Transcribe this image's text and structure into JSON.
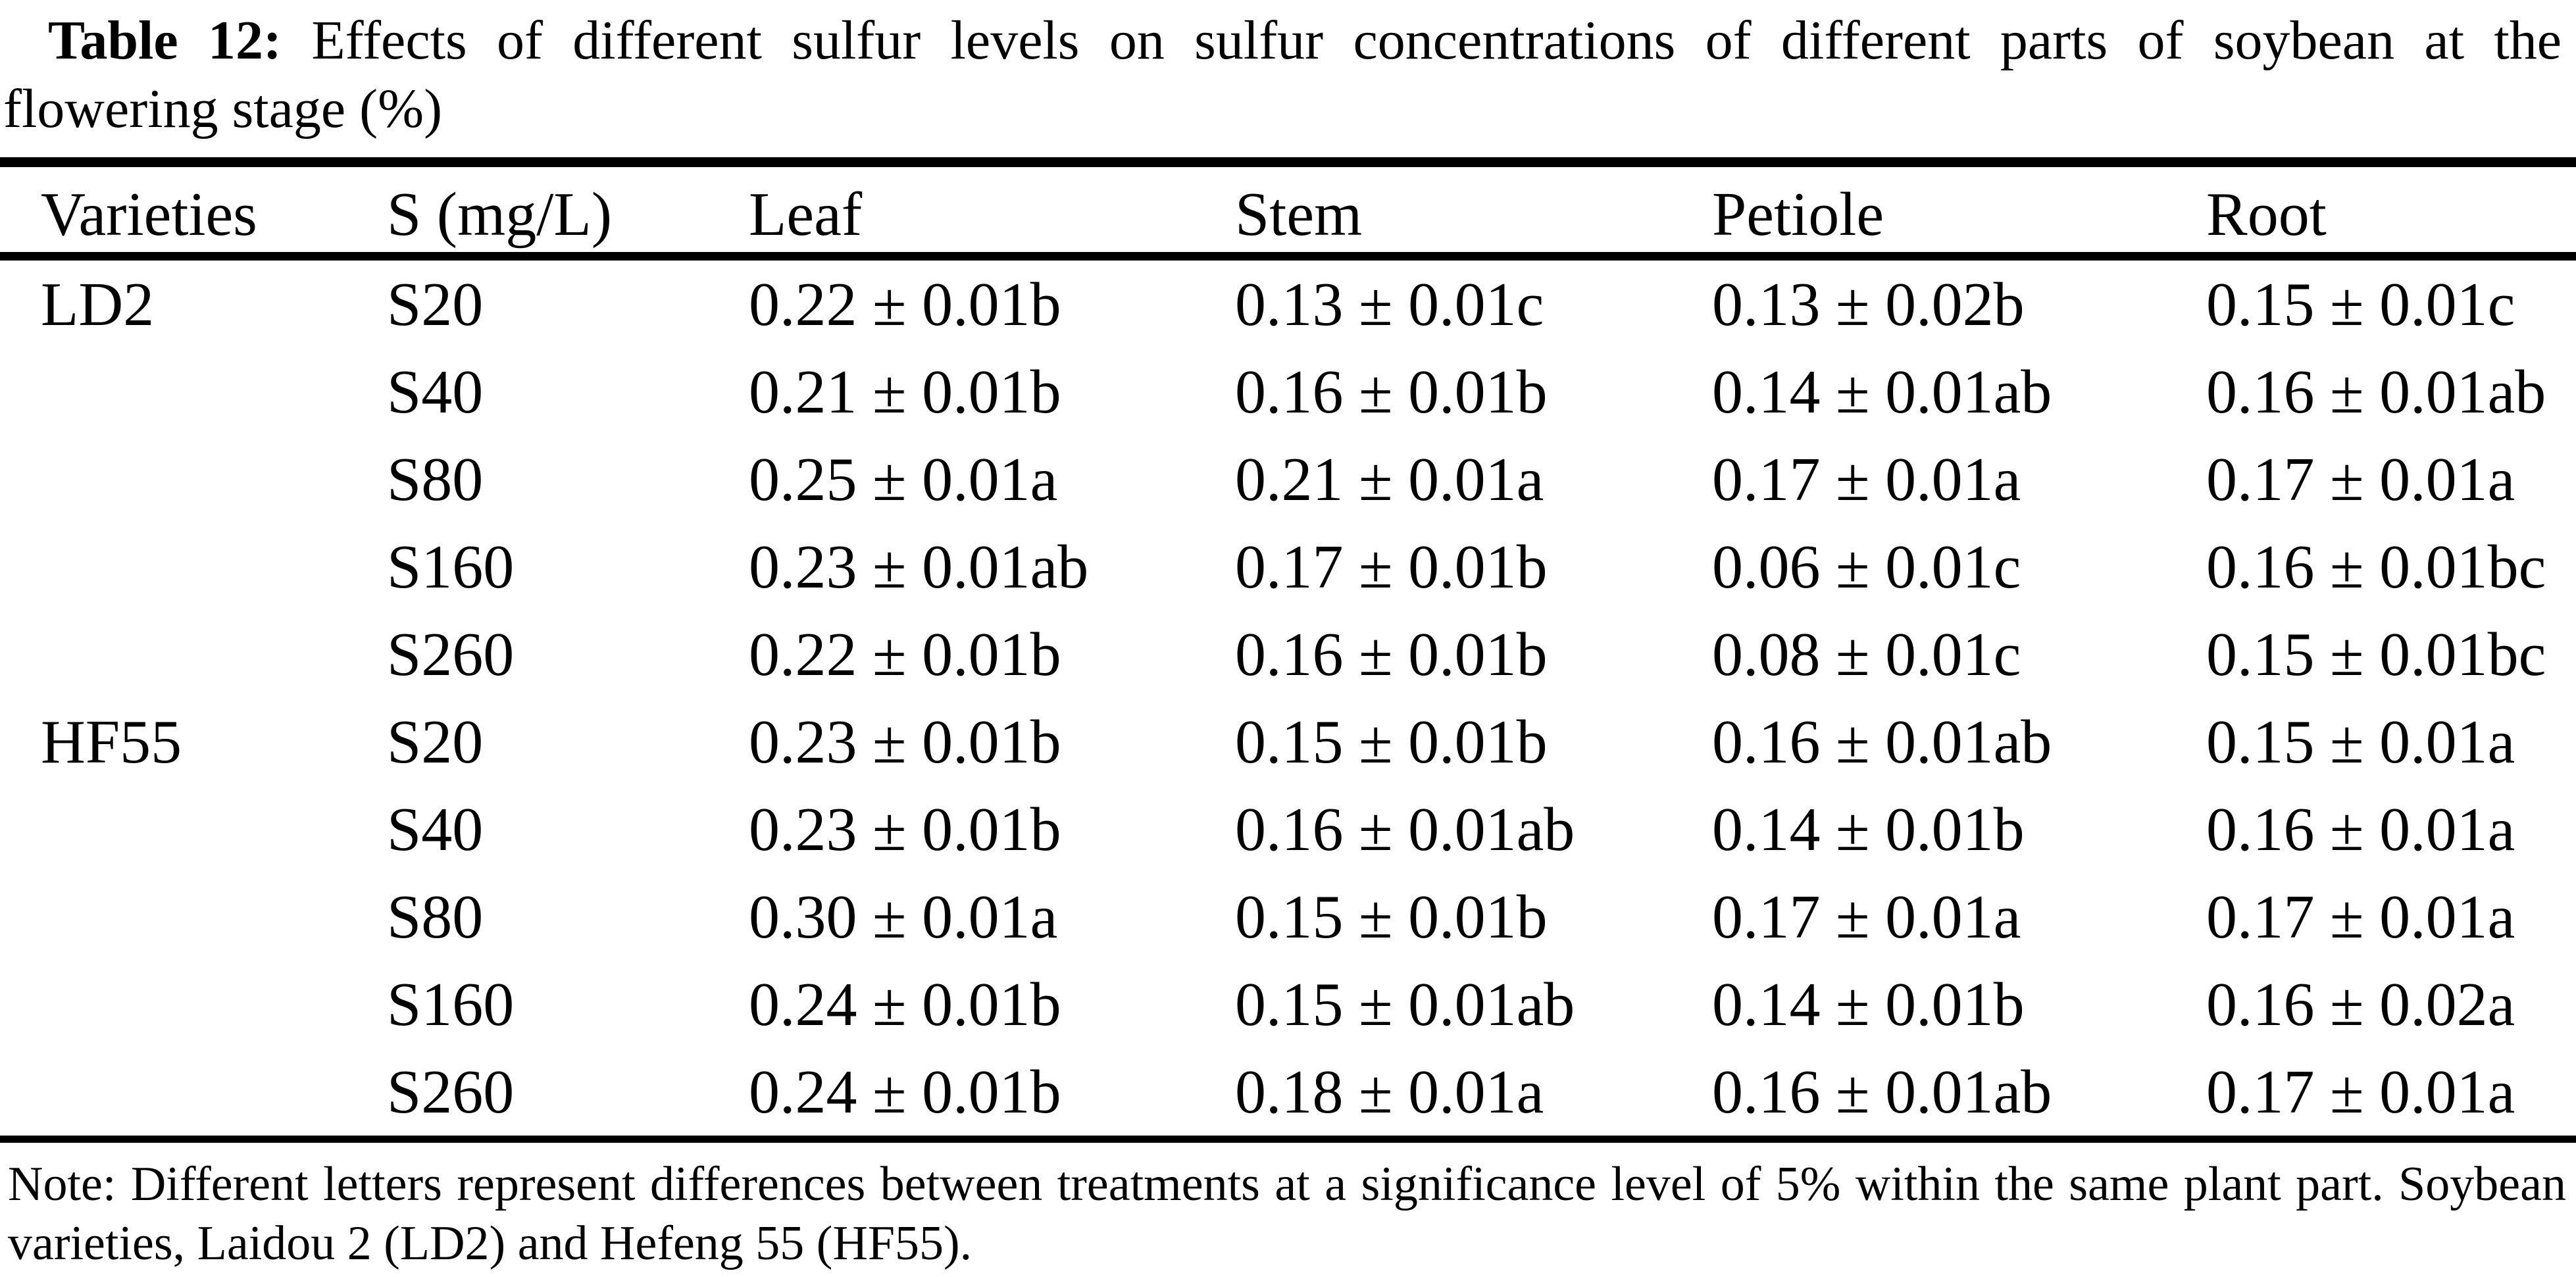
{
  "caption": {
    "label": "Table 12:",
    "line1_rest": "Effects of different sulfur levels on sulfur concentrations of different parts of soybean at the",
    "line2": "flowering stage (%)"
  },
  "table": {
    "columns": [
      "Varieties",
      "S (mg/L)",
      "Leaf",
      "Stem",
      "Petiole",
      "Root"
    ],
    "rows": [
      [
        "LD2",
        "S20",
        "0.22 ± 0.01b",
        "0.13 ± 0.01c",
        "0.13 ± 0.02b",
        "0.15 ± 0.01c"
      ],
      [
        "",
        "S40",
        "0.21 ± 0.01b",
        "0.16 ± 0.01b",
        "0.14 ± 0.01ab",
        "0.16 ± 0.01ab"
      ],
      [
        "",
        "S80",
        "0.25 ± 0.01a",
        "0.21 ± 0.01a",
        "0.17 ± 0.01a",
        "0.17 ± 0.01a"
      ],
      [
        "",
        "S160",
        "0.23 ± 0.01ab",
        "0.17 ± 0.01b",
        "0.06 ± 0.01c",
        "0.16 ± 0.01bc"
      ],
      [
        "",
        "S260",
        "0.22 ± 0.01b",
        "0.16 ± 0.01b",
        "0.08 ± 0.01c",
        "0.15 ± 0.01bc"
      ],
      [
        "HF55",
        "S20",
        "0.23 ± 0.01b",
        "0.15 ± 0.01b",
        "0.16 ± 0.01ab",
        "0.15 ± 0.01a"
      ],
      [
        "",
        "S40",
        "0.23 ± 0.01b",
        "0.16 ± 0.01ab",
        "0.14 ± 0.01b",
        "0.16 ± 0.01a"
      ],
      [
        "",
        "S80",
        "0.30 ± 0.01a",
        "0.15 ± 0.01b",
        "0.17 ± 0.01a",
        "0.17 ± 0.01a"
      ],
      [
        "",
        "S160",
        "0.24 ± 0.01b",
        "0.15 ± 0.01ab",
        "0.14 ± 0.01b",
        "0.16 ± 0.02a"
      ],
      [
        "",
        "S260",
        "0.24 ± 0.01b",
        "0.18 ± 0.01a",
        "0.16 ± 0.01ab",
        "0.17 ± 0.01a"
      ]
    ]
  },
  "note": {
    "line1": "Note: Different letters represent differences between treatments at a significance level of 5% within the same plant part. Soybean",
    "line2": "varieties, Laidou 2 (LD2) and Hefeng 55 (HF55)."
  },
  "colors": {
    "text": "#000000",
    "background": "#ffffff",
    "rule": "#000000"
  }
}
